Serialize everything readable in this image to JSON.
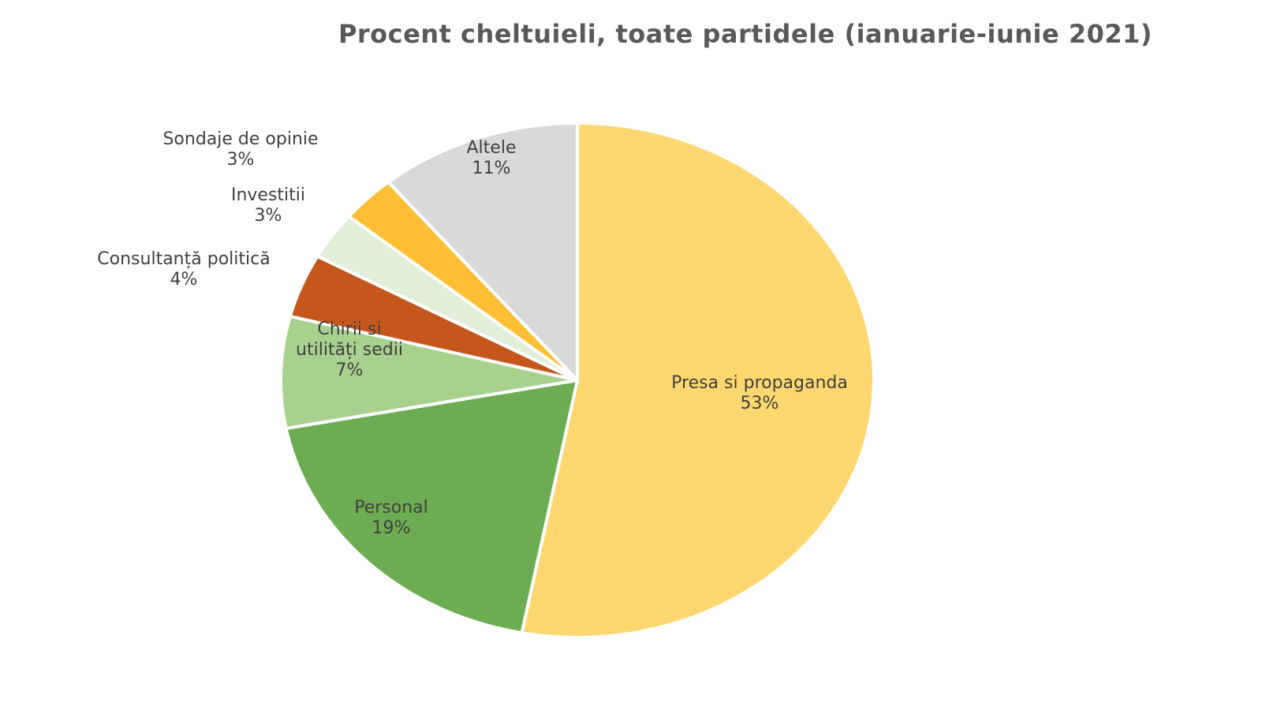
{
  "chart_data": {
    "type": "pie",
    "title": "Procent cheltuieli, toate partidele (ianuarie-iunie 2021)",
    "slices": [
      {
        "label_lines": [
          "Presa si propaganda"
        ],
        "value": 53,
        "value_label": "53%",
        "color": "#FFD770"
      },
      {
        "label_lines": [
          "Personal"
        ],
        "value": 19,
        "value_label": "19%",
        "color": "#6DAC52"
      },
      {
        "label_lines": [
          "Chirii si",
          "utilități sedii"
        ],
        "value": 7,
        "value_label": "7%",
        "color": "#A9D18E"
      },
      {
        "label_lines": [
          "Consultanță politică"
        ],
        "value": 4,
        "value_label": "4%",
        "color": "#C5571D"
      },
      {
        "label_lines": [
          "Investitii"
        ],
        "value": 3,
        "value_label": "3%",
        "color": "#E2EFDA"
      },
      {
        "label_lines": [
          "Sondaje de opinie"
        ],
        "value": 3,
        "value_label": "3%",
        "color": "#FFBE33"
      },
      {
        "label_lines": [
          "Altele"
        ],
        "value": 11,
        "value_label": "11%",
        "color": "#D9D9D9"
      }
    ],
    "legend": "none",
    "data_labels": "category name and percentage"
  }
}
